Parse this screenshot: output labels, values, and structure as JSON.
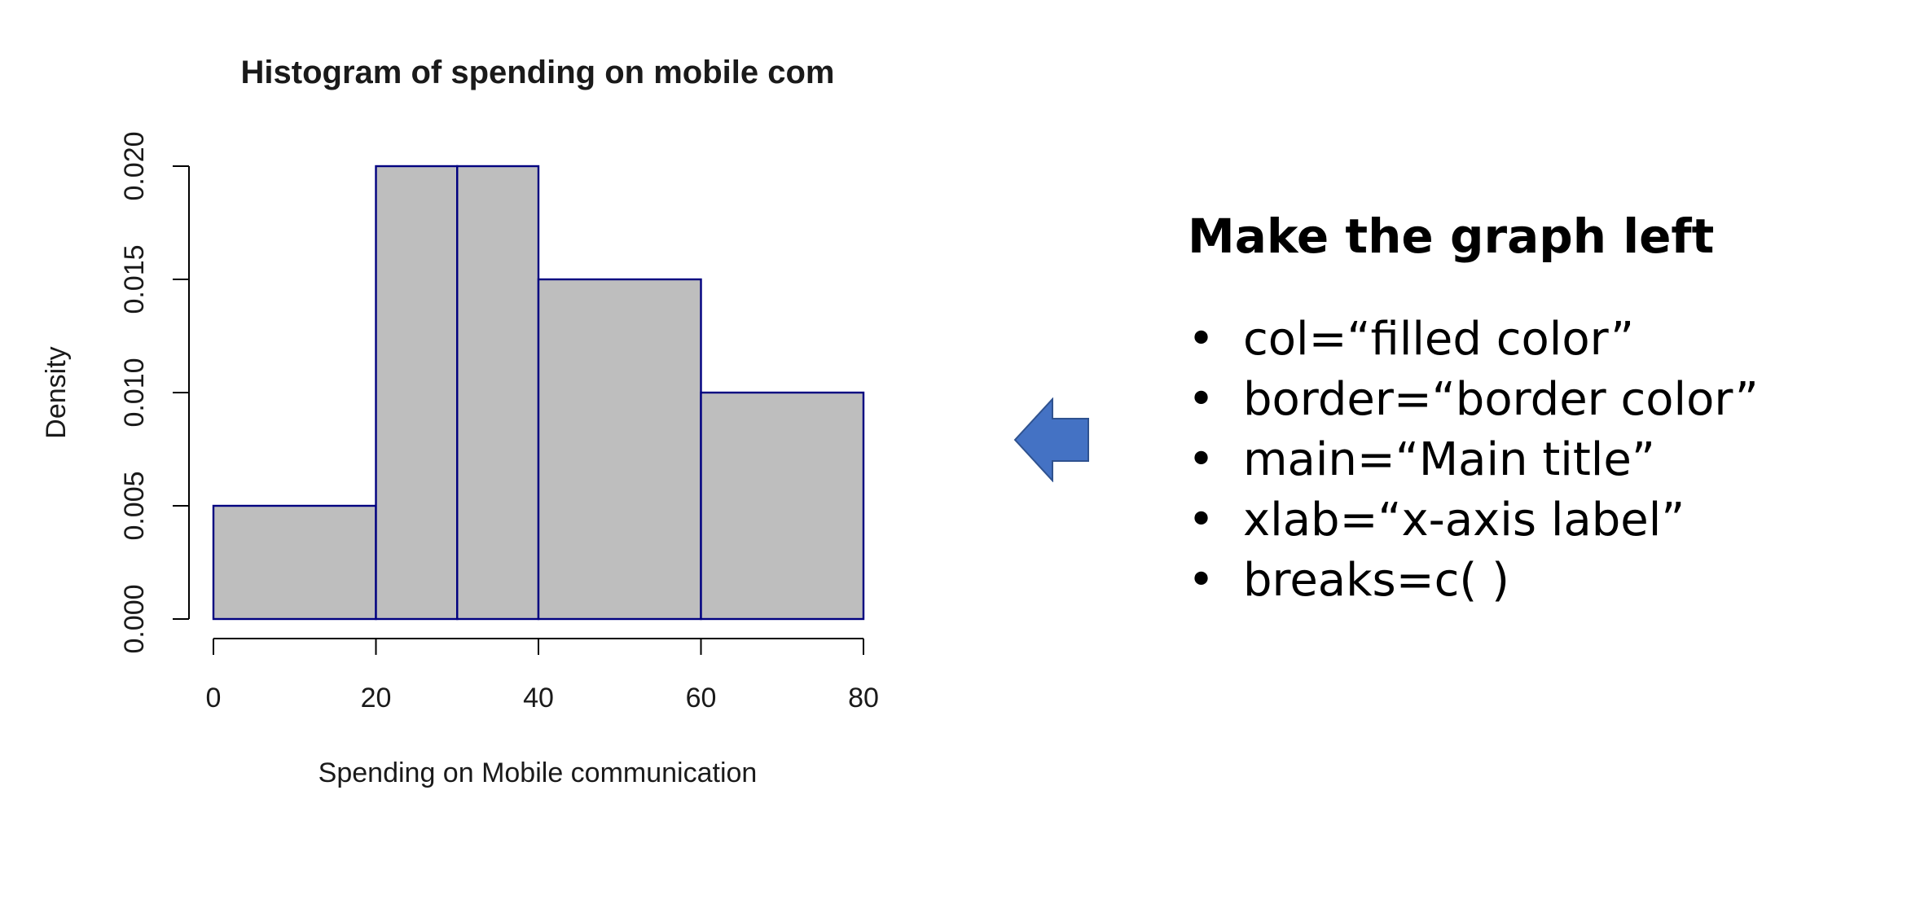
{
  "chart_data": {
    "type": "histogram",
    "title": "Histogram of spending on mobile com",
    "xlabel": "Spending on Mobile communication",
    "ylabel": "Density",
    "breaks": [
      0,
      20,
      30,
      40,
      60,
      80
    ],
    "densities": [
      0.005,
      0.02,
      0.02,
      0.015,
      0.01
    ],
    "xlim": [
      0,
      80
    ],
    "ylim": [
      0,
      0.02
    ],
    "x_ticks": [
      0,
      20,
      40,
      60,
      80
    ],
    "x_tick_labels": [
      "0",
      "20",
      "40",
      "60",
      "80"
    ],
    "y_ticks": [
      0,
      0.005,
      0.01,
      0.015,
      0.02
    ],
    "y_tick_labels": [
      "0.000",
      "0.005",
      "0.010",
      "0.015",
      "0.020"
    ],
    "bar_fill": "#bebebe",
    "bar_border": "#000080",
    "grid": false,
    "legend": "none"
  },
  "notes": {
    "heading": "Make the graph left",
    "bullet_glyph": "•",
    "items": [
      "col=“filled color”",
      "border=“border color”",
      "main=“Main title”",
      "xlab=“x-axis label”",
      "breaks=c( )"
    ]
  },
  "arrow": {
    "icon": "left-arrow-icon",
    "color": "#4472c4",
    "stroke": "#2f528f"
  }
}
